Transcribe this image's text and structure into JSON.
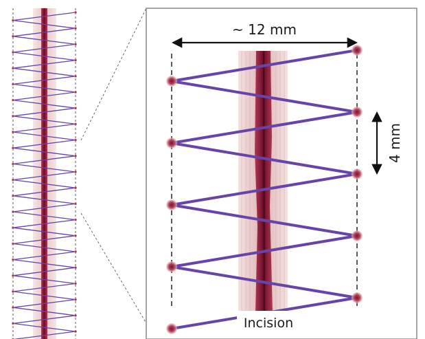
{
  "labels": {
    "width": "~ 12 mm",
    "spacing": "4 mm",
    "incision": "Incision"
  },
  "colors": {
    "suture": "#6644aa",
    "incision_core": "#7a1030",
    "tissue": "#e7c9c9",
    "knot": "#8a1f3a",
    "frame": "#888888",
    "arrow": "#111111"
  }
}
